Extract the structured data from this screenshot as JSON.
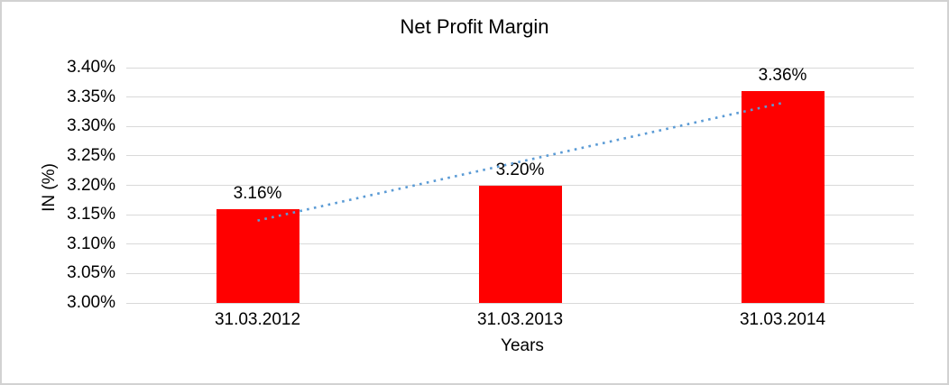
{
  "frame": {
    "background_color": "#ffffff",
    "border_color": "#d2d2d2"
  },
  "chart_data": {
    "type": "bar",
    "title": "Net Profit Margin",
    "xlabel": "Years",
    "ylabel": "IN (%)",
    "categories": [
      "31.03.2012",
      "31.03.2013",
      "31.03.2014"
    ],
    "values": [
      3.16,
      3.2,
      3.36
    ],
    "value_labels": [
      "3.16%",
      "3.20%",
      "3.36%"
    ],
    "bar_color": "#ff0000",
    "y_axis": {
      "min": 3.0,
      "max": 3.4,
      "step": 0.05,
      "tick_labels": [
        "3.00%",
        "3.05%",
        "3.10%",
        "3.15%",
        "3.20%",
        "3.25%",
        "3.30%",
        "3.35%",
        "3.40%"
      ]
    },
    "grid": true,
    "gridline_color": "#d9d9d9",
    "legend_position": "none",
    "trendline": {
      "type": "linear",
      "style": "dotted",
      "color": "#5b9bd5",
      "start_value": 3.14,
      "end_value": 3.34
    }
  }
}
